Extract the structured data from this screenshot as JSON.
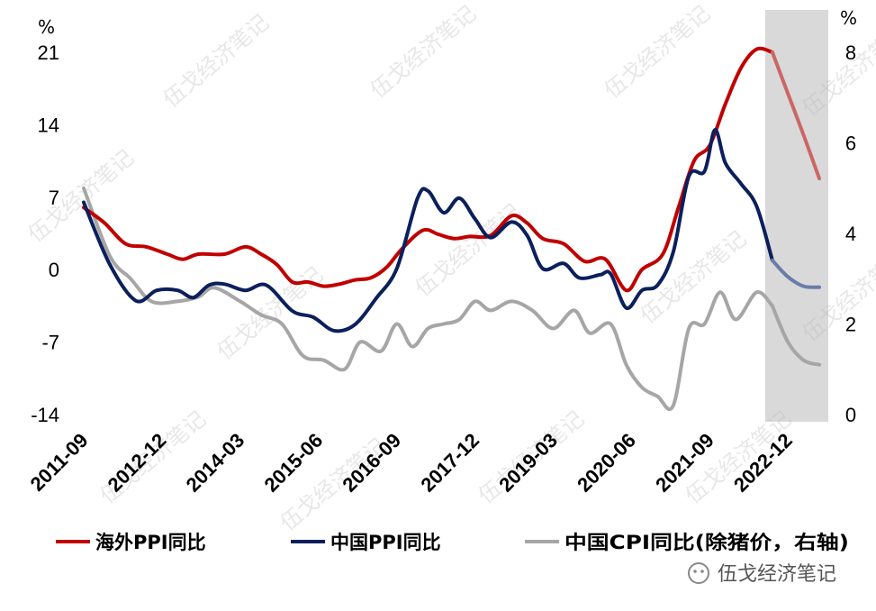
{
  "chart_data": {
    "type": "line",
    "left_axis": {
      "unit": "%",
      "ylim": [
        -14,
        21
      ],
      "ticks": [
        21,
        14,
        7,
        0,
        -7,
        -14
      ]
    },
    "right_axis": {
      "unit": "%",
      "ylim": [
        0,
        8
      ],
      "ticks": [
        8,
        6,
        4,
        2,
        0
      ]
    },
    "x_tick_labels": [
      "2011-09",
      "2012-12",
      "2014-03",
      "2015-06",
      "2016-09",
      "2017-12",
      "2019-03",
      "2020-06",
      "2021-09",
      "2022-12"
    ],
    "x_start": "2011-09",
    "x_end": "2023-06",
    "shaded_range": [
      "2022-09",
      "2023-06"
    ],
    "shade_color": "#d9d9d9",
    "series": [
      {
        "name": "海外PPI同比",
        "axis": "left",
        "color": "#c00000",
        "forecast_color": "#cc6666",
        "values": [
          [
            "2011-09",
            6.0
          ],
          [
            "2012-01",
            4.5
          ],
          [
            "2012-05",
            2.5
          ],
          [
            "2012-09",
            2.2
          ],
          [
            "2013-01",
            1.5
          ],
          [
            "2013-04",
            1.0
          ],
          [
            "2013-07",
            1.5
          ],
          [
            "2013-12",
            1.5
          ],
          [
            "2014-04",
            2.2
          ],
          [
            "2014-07",
            1.5
          ],
          [
            "2014-10",
            0.5
          ],
          [
            "2015-01",
            -1.2
          ],
          [
            "2015-04",
            -1.2
          ],
          [
            "2015-07",
            -1.6
          ],
          [
            "2015-10",
            -1.4
          ],
          [
            "2016-01",
            -1.0
          ],
          [
            "2016-04",
            -0.8
          ],
          [
            "2016-07",
            0.2
          ],
          [
            "2016-10",
            2.0
          ],
          [
            "2017-02",
            3.8
          ],
          [
            "2017-05",
            3.4
          ],
          [
            "2017-08",
            3.0
          ],
          [
            "2017-11",
            3.2
          ],
          [
            "2018-03",
            3.3
          ],
          [
            "2018-07",
            5.2
          ],
          [
            "2018-10",
            4.5
          ],
          [
            "2019-01",
            3.0
          ],
          [
            "2019-05",
            2.5
          ],
          [
            "2019-09",
            0.8
          ],
          [
            "2020-01",
            1.0
          ],
          [
            "2020-05",
            -2.0
          ],
          [
            "2020-08",
            0.0
          ],
          [
            "2020-12",
            1.5
          ],
          [
            "2021-03",
            6.0
          ],
          [
            "2021-06",
            10.5
          ],
          [
            "2021-09",
            12.0
          ],
          [
            "2021-12",
            16.0
          ],
          [
            "2022-03",
            19.5
          ],
          [
            "2022-06",
            21.3
          ],
          [
            "2022-09",
            21.0
          ],
          [
            "2022-12",
            17.0
          ],
          [
            "2023-03",
            13.0
          ],
          [
            "2023-06",
            8.8
          ]
        ]
      },
      {
        "name": "中国PPI同比",
        "axis": "left",
        "color": "#0b1f5c",
        "forecast_color": "#6a7da8",
        "values": [
          [
            "2011-09",
            6.5
          ],
          [
            "2012-02",
            0.5
          ],
          [
            "2012-07",
            -3.0
          ],
          [
            "2012-11",
            -2.0
          ],
          [
            "2013-03",
            -2.0
          ],
          [
            "2013-06",
            -2.7
          ],
          [
            "2013-09",
            -1.5
          ],
          [
            "2013-12",
            -1.4
          ],
          [
            "2014-04",
            -2.0
          ],
          [
            "2014-08",
            -1.5
          ],
          [
            "2015-01",
            -4.0
          ],
          [
            "2015-05",
            -4.6
          ],
          [
            "2015-09",
            -5.9
          ],
          [
            "2016-01",
            -5.3
          ],
          [
            "2016-05",
            -2.8
          ],
          [
            "2016-09",
            0.1
          ],
          [
            "2017-01",
            6.9
          ],
          [
            "2017-03",
            7.6
          ],
          [
            "2017-06",
            5.5
          ],
          [
            "2017-09",
            6.9
          ],
          [
            "2017-12",
            4.9
          ],
          [
            "2018-03",
            3.1
          ],
          [
            "2018-07",
            4.6
          ],
          [
            "2018-10",
            3.3
          ],
          [
            "2019-01",
            0.1
          ],
          [
            "2019-05",
            0.6
          ],
          [
            "2019-08",
            -0.8
          ],
          [
            "2019-12",
            -0.5
          ],
          [
            "2020-02",
            -0.4
          ],
          [
            "2020-05",
            -3.7
          ],
          [
            "2020-08",
            -2.0
          ],
          [
            "2020-11",
            -1.5
          ],
          [
            "2021-02",
            1.7
          ],
          [
            "2021-05",
            9.0
          ],
          [
            "2021-08",
            9.5
          ],
          [
            "2021-10",
            13.5
          ],
          [
            "2021-12",
            10.3
          ],
          [
            "2022-03",
            8.3
          ],
          [
            "2022-06",
            6.1
          ],
          [
            "2022-09",
            0.9
          ],
          [
            "2022-12",
            -0.7
          ],
          [
            "2023-03",
            -1.6
          ],
          [
            "2023-06",
            -1.7
          ]
        ]
      },
      {
        "name": "中国CPI同比(除猪价，右轴)",
        "axis": "right",
        "color": "#a6a6a6",
        "forecast_color": "#a6a6a6",
        "values": [
          [
            "2011-09",
            5.0
          ],
          [
            "2012-02",
            3.5
          ],
          [
            "2012-06",
            3.0
          ],
          [
            "2012-10",
            2.5
          ],
          [
            "2013-03",
            2.5
          ],
          [
            "2013-07",
            2.6
          ],
          [
            "2013-10",
            2.8
          ],
          [
            "2014-03",
            2.5
          ],
          [
            "2014-07",
            2.2
          ],
          [
            "2014-11",
            2.0
          ],
          [
            "2015-03",
            1.3
          ],
          [
            "2015-07",
            1.2
          ],
          [
            "2015-11",
            1.0
          ],
          [
            "2016-02",
            1.6
          ],
          [
            "2016-06",
            1.4
          ],
          [
            "2016-09",
            2.0
          ],
          [
            "2016-12",
            1.5
          ],
          [
            "2017-03",
            1.9
          ],
          [
            "2017-06",
            2.0
          ],
          [
            "2017-09",
            2.1
          ],
          [
            "2017-12",
            2.5
          ],
          [
            "2018-03",
            2.3
          ],
          [
            "2018-07",
            2.5
          ],
          [
            "2018-11",
            2.3
          ],
          [
            "2019-03",
            1.9
          ],
          [
            "2019-07",
            2.3
          ],
          [
            "2019-10",
            1.8
          ],
          [
            "2020-02",
            2.0
          ],
          [
            "2020-05",
            1.1
          ],
          [
            "2020-08",
            0.6
          ],
          [
            "2020-11",
            0.4
          ],
          [
            "2021-02",
            0.2
          ],
          [
            "2021-05",
            1.9
          ],
          [
            "2021-08",
            2.0
          ],
          [
            "2021-11",
            2.7
          ],
          [
            "2022-02",
            2.1
          ],
          [
            "2022-06",
            2.7
          ],
          [
            "2022-09",
            2.4
          ],
          [
            "2022-12",
            1.6
          ],
          [
            "2023-03",
            1.2
          ],
          [
            "2023-06",
            1.1
          ]
        ]
      }
    ],
    "legend_placement": "bottom"
  },
  "watermark": "伍戈经济笔记",
  "source_label": "伍戈经济笔记"
}
